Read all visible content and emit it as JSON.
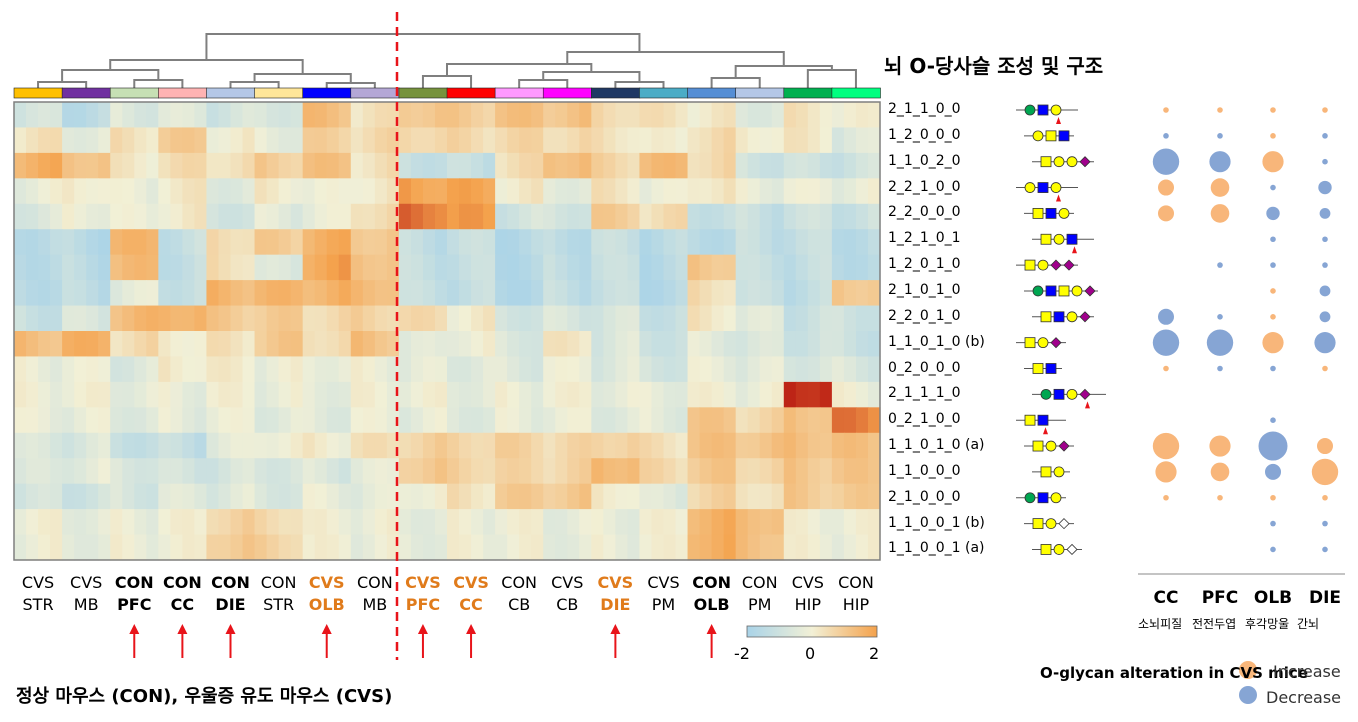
{
  "title": "뇌 O-당사슬 조성 및 구조",
  "footer": "정상 마우스 (CON), 우울증 유도 마우스 (CVS)",
  "colors": {
    "low": "#a9d3e8",
    "mid": "#f2f0d6",
    "high": "#f4a24c",
    "vhigh": "#b30c0c",
    "increase": "#f8b67a",
    "decrease": "#86a5d4",
    "cvs_orange": "#e07b1b",
    "arrow": "#e8141a",
    "divider": "#e8141a"
  },
  "groups": [
    {
      "cond": "CVS",
      "region": "STR",
      "style": "normal",
      "arrow": false,
      "color": "#ffc000"
    },
    {
      "cond": "CVS",
      "region": "MB",
      "style": "normal",
      "arrow": false,
      "color": "#7030a0"
    },
    {
      "cond": "CON",
      "region": "PFC",
      "style": "bold",
      "arrow": true,
      "color": "#c6e0b4"
    },
    {
      "cond": "CON",
      "region": "CC",
      "style": "bold",
      "arrow": true,
      "color": "#ffb3b3"
    },
    {
      "cond": "CON",
      "region": "DIE",
      "style": "bold",
      "arrow": true,
      "color": "#b4c7e7"
    },
    {
      "cond": "CON",
      "region": "STR",
      "style": "normal",
      "arrow": false,
      "color": "#ffe699"
    },
    {
      "cond": "CVS",
      "region": "OLB",
      "style": "orange",
      "arrow": true,
      "color": "#0000ff"
    },
    {
      "cond": "CON",
      "region": "MB",
      "style": "normal",
      "arrow": false,
      "color": "#b4a7d6"
    },
    {
      "cond": "CVS",
      "region": "PFC",
      "style": "orange",
      "arrow": true,
      "color": "#76923c"
    },
    {
      "cond": "CVS",
      "region": "CC",
      "style": "orange",
      "arrow": true,
      "color": "#ff0000"
    },
    {
      "cond": "CON",
      "region": "CB",
      "style": "normal",
      "arrow": false,
      "color": "#ff99ff"
    },
    {
      "cond": "CVS",
      "region": "CB",
      "style": "normal",
      "arrow": false,
      "color": "#ff00ff"
    },
    {
      "cond": "CVS",
      "region": "DIE",
      "style": "orange",
      "arrow": true,
      "color": "#1f3864"
    },
    {
      "cond": "CVS",
      "region": "PM",
      "style": "normal",
      "arrow": false,
      "color": "#4bacc6"
    },
    {
      "cond": "CON",
      "region": "OLB",
      "style": "bold",
      "arrow": true,
      "color": "#558ed5"
    },
    {
      "cond": "CON",
      "region": "PM",
      "style": "normal",
      "arrow": false,
      "color": "#b4c7e7"
    },
    {
      "cond": "CVS",
      "region": "HIP",
      "style": "normal",
      "arrow": false,
      "color": "#00b050"
    },
    {
      "cond": "CON",
      "region": "HIP",
      "style": "normal",
      "arrow": false,
      "color": "#00ff80"
    }
  ],
  "glycans": [
    "2_1_1_0_0",
    "1_2_0_0_0",
    "1_1_0_2_0",
    "2_2_1_0_0",
    "2_2_0_0_0",
    "1_2_1_0_1",
    "1_2_0_1_0",
    "2_1_0_1_0",
    "2_2_0_1_0",
    "1_1_0_1_0 (b)",
    "0_2_0_0_0",
    "2_1_1_1_0",
    "0_2_1_0_0",
    "1_1_0_1_0 (a)",
    "1_1_0_0_0",
    "2_1_0_0_0",
    "1_1_0_0_1 (b)",
    "1_1_0_0_1 (a)"
  ],
  "chart_data": [
    {
      "type": "heatmap",
      "title": "",
      "rows": [
        "2_1_1_0_0",
        "1_2_0_0_0",
        "1_1_0_2_0",
        "2_2_1_0_0",
        "2_2_0_0_0",
        "1_2_1_0_1",
        "1_2_0_1_0",
        "2_1_0_1_0",
        "2_2_0_1_0",
        "1_1_0_1_0 (b)",
        "0_2_0_0_0",
        "2_1_1_1_0",
        "0_2_1_0_0",
        "1_1_0_1_0 (a)",
        "1_1_0_0_0",
        "2_1_0_0_0",
        "1_1_0_0_1 (b)",
        "1_1_0_0_1 (a)"
      ],
      "columns": [
        "CVS STR",
        "CVS MB",
        "CON PFC",
        "CON CC",
        "CON DIE",
        "CON STR",
        "CVS OLB",
        "CON MB",
        "CVS PFC",
        "CVS CC",
        "CON CB",
        "CVS CB",
        "CVS DIE",
        "CVS PM",
        "CON OLB",
        "CON PM",
        "CVS HIP",
        "CON HIP"
      ],
      "values": [
        [
          -0.6,
          -0.8,
          -0.3,
          -0.4,
          -0.5,
          -0.3,
          0.9,
          0.2,
          0.9,
          0.7,
          0.8,
          0.9,
          0.5,
          0.2,
          0.1,
          -0.2,
          0.2,
          -0.1
        ],
        [
          0.2,
          -0.1,
          0.3,
          0.6,
          0.1,
          -0.1,
          0.5,
          0.4,
          0.6,
          0.4,
          0.4,
          0.5,
          0.3,
          -0.1,
          0.4,
          0.2,
          0.1,
          -0.4
        ],
        [
          1.2,
          1.0,
          0.1,
          0.3,
          0.4,
          0.7,
          0.8,
          0.3,
          -0.6,
          -0.8,
          0.3,
          1.1,
          0.5,
          0.9,
          0.5,
          -0.5,
          -0.7,
          -0.6
        ],
        [
          -0.1,
          0.2,
          -0.2,
          0.1,
          -0.2,
          0.1,
          -0.2,
          0.2,
          1.5,
          1.3,
          0.1,
          -0.1,
          0.2,
          -0.2,
          0.3,
          -0.1,
          -0.2,
          -0.1
        ],
        [
          -0.3,
          0.0,
          -0.2,
          0.1,
          -0.4,
          -0.3,
          -0.2,
          0.5,
          1.9,
          1.4,
          -0.5,
          -0.4,
          0.6,
          0.3,
          -0.6,
          -0.7,
          -0.7,
          -0.6
        ],
        [
          -0.8,
          -0.9,
          1.0,
          -0.7,
          0.5,
          0.6,
          1.2,
          0.9,
          -0.8,
          -0.8,
          -0.9,
          -0.8,
          -0.8,
          -0.9,
          -0.8,
          -0.8,
          -0.8,
          -0.8
        ],
        [
          -0.8,
          -0.9,
          0.9,
          -0.7,
          0.4,
          -0.5,
          1.4,
          1.0,
          -0.8,
          -0.8,
          -0.9,
          -0.8,
          -0.8,
          -0.9,
          0.9,
          -0.8,
          -0.8,
          -0.8
        ],
        [
          -0.8,
          -0.9,
          -0.3,
          -0.6,
          1.1,
          1.0,
          1.2,
          1.1,
          -0.8,
          -0.8,
          -0.9,
          -0.8,
          -0.8,
          -0.9,
          0.4,
          -0.8,
          -0.8,
          0.9
        ],
        [
          -0.6,
          -0.5,
          1.0,
          1.3,
          0.7,
          0.6,
          0.5,
          0.6,
          0.3,
          0.1,
          -0.4,
          -0.5,
          -0.5,
          -0.6,
          0.2,
          -0.4,
          -0.6,
          -0.5
        ],
        [
          1.0,
          1.1,
          0.4,
          0.2,
          0.2,
          0.7,
          0.5,
          0.9,
          -0.4,
          0.0,
          -0.3,
          0.1,
          -0.4,
          -0.5,
          -0.3,
          -0.5,
          -0.5,
          -0.6
        ],
        [
          -0.1,
          -0.2,
          -0.3,
          0.2,
          0.0,
          -0.1,
          0.0,
          -0.1,
          -0.3,
          -0.2,
          -0.3,
          -0.2,
          -0.3,
          -0.4,
          -0.2,
          -0.3,
          -0.3,
          -0.4
        ],
        [
          -0.1,
          -0.1,
          -0.1,
          -0.1,
          -0.1,
          -0.1,
          -0.1,
          -0.1,
          -0.1,
          -0.1,
          -0.1,
          -0.1,
          -0.1,
          -0.1,
          -0.1,
          -0.1,
          2.6,
          -0.1
        ],
        [
          -0.2,
          -0.2,
          -0.2,
          -0.2,
          -0.2,
          -0.2,
          -0.2,
          -0.2,
          -0.2,
          -0.2,
          -0.2,
          -0.2,
          -0.2,
          -0.2,
          0.7,
          0.5,
          1.0,
          1.7
        ],
        [
          -0.5,
          -0.4,
          -0.6,
          -0.8,
          -0.3,
          0.1,
          0.1,
          0.2,
          0.6,
          0.6,
          0.5,
          0.4,
          0.7,
          0.3,
          0.8,
          0.9,
          1.0,
          0.8
        ],
        [
          -0.5,
          -0.2,
          -0.3,
          -0.6,
          -0.5,
          -0.3,
          -0.4,
          -0.3,
          0.8,
          0.6,
          0.4,
          0.5,
          1.2,
          0.4,
          0.7,
          0.6,
          0.8,
          0.7
        ],
        [
          -0.6,
          -0.5,
          -0.4,
          -0.4,
          -0.3,
          -0.3,
          -0.2,
          -0.3,
          0.1,
          0.3,
          0.6,
          0.8,
          0.2,
          -0.4,
          0.5,
          0.4,
          0.7,
          0.6
        ],
        [
          -0.1,
          -0.1,
          -0.1,
          -0.1,
          0.6,
          0.5,
          -0.1,
          -0.1,
          -0.1,
          -0.1,
          -0.1,
          -0.1,
          -0.1,
          -0.1,
          1.2,
          1.1,
          -0.1,
          -0.1
        ],
        [
          -0.1,
          -0.1,
          -0.1,
          -0.1,
          0.8,
          0.6,
          -0.1,
          -0.1,
          -0.1,
          -0.1,
          -0.1,
          -0.1,
          -0.1,
          -0.1,
          1.3,
          1.0,
          -0.1,
          -0.1
        ]
      ],
      "colorbar": {
        "min": -2,
        "max": 2,
        "ticks": [
          "-2",
          "0",
          "2"
        ]
      },
      "notes": "Hierarchical clustering dendrogram above columns; red dashed line separates two clusters"
    },
    {
      "type": "scatter",
      "title": "O-glycan alteration in CVS mice",
      "columns": [
        "CC",
        "PFC",
        "OLB",
        "DIE"
      ],
      "column_labels_kr": [
        "소뇌피질",
        "전전두엽",
        "후각망울",
        "간뇌"
      ],
      "legend": [
        "Increase",
        "Decrease"
      ],
      "rows": [
        "2_1_1_0_0",
        "1_2_0_0_0",
        "1_1_0_2_0",
        "2_2_1_0_0",
        "2_2_0_0_0",
        "1_2_1_0_1",
        "1_2_0_1_0",
        "2_1_0_1_0",
        "2_2_0_1_0",
        "1_1_0_1_0 (b)",
        "0_2_0_0_0",
        "2_1_1_1_0",
        "0_2_1_0_0",
        "1_1_0_1_0 (a)",
        "1_1_0_0_0",
        "2_1_0_0_0",
        "1_1_0_0_1 (b)",
        "1_1_0_0_1 (a)"
      ],
      "points": [
        {
          "row": "2_1_1_0_0",
          "col": "CC",
          "dir": "Increase",
          "size": 1
        },
        {
          "row": "2_1_1_0_0",
          "col": "PFC",
          "dir": "Increase",
          "size": 1
        },
        {
          "row": "2_1_1_0_0",
          "col": "OLB",
          "dir": "Increase",
          "size": 1
        },
        {
          "row": "2_1_1_0_0",
          "col": "DIE",
          "dir": "Increase",
          "size": 1
        },
        {
          "row": "1_2_0_0_0",
          "col": "CC",
          "dir": "Decrease",
          "size": 1
        },
        {
          "row": "1_2_0_0_0",
          "col": "PFC",
          "dir": "Decrease",
          "size": 1
        },
        {
          "row": "1_2_0_0_0",
          "col": "OLB",
          "dir": "Increase",
          "size": 1
        },
        {
          "row": "1_2_0_0_0",
          "col": "DIE",
          "dir": "Decrease",
          "size": 1
        },
        {
          "row": "1_1_0_2_0",
          "col": "CC",
          "dir": "Decrease",
          "size": 5
        },
        {
          "row": "1_1_0_2_0",
          "col": "PFC",
          "dir": "Decrease",
          "size": 4
        },
        {
          "row": "1_1_0_2_0",
          "col": "OLB",
          "dir": "Increase",
          "size": 4
        },
        {
          "row": "1_1_0_2_0",
          "col": "DIE",
          "dir": "Decrease",
          "size": 1
        },
        {
          "row": "2_2_1_0_0",
          "col": "CC",
          "dir": "Increase",
          "size": 3
        },
        {
          "row": "2_2_1_0_0",
          "col": "PFC",
          "dir": "Increase",
          "size": 3.5
        },
        {
          "row": "2_2_1_0_0",
          "col": "OLB",
          "dir": "Decrease",
          "size": 1
        },
        {
          "row": "2_2_1_0_0",
          "col": "DIE",
          "dir": "Decrease",
          "size": 2.5
        },
        {
          "row": "2_2_0_0_0",
          "col": "CC",
          "dir": "Increase",
          "size": 3
        },
        {
          "row": "2_2_0_0_0",
          "col": "PFC",
          "dir": "Increase",
          "size": 3.5
        },
        {
          "row": "2_2_0_0_0",
          "col": "OLB",
          "dir": "Decrease",
          "size": 2.5
        },
        {
          "row": "2_2_0_0_0",
          "col": "DIE",
          "dir": "Decrease",
          "size": 2
        },
        {
          "row": "1_2_1_0_1",
          "col": "OLB",
          "dir": "Decrease",
          "size": 1
        },
        {
          "row": "1_2_1_0_1",
          "col": "DIE",
          "dir": "Decrease",
          "size": 1
        },
        {
          "row": "1_2_0_1_0",
          "col": "PFC",
          "dir": "Decrease",
          "size": 1
        },
        {
          "row": "1_2_0_1_0",
          "col": "OLB",
          "dir": "Decrease",
          "size": 1
        },
        {
          "row": "1_2_0_1_0",
          "col": "DIE",
          "dir": "Decrease",
          "size": 1
        },
        {
          "row": "2_1_0_1_0",
          "col": "OLB",
          "dir": "Increase",
          "size": 1
        },
        {
          "row": "2_1_0_1_0",
          "col": "DIE",
          "dir": "Decrease",
          "size": 2
        },
        {
          "row": "2_2_0_1_0",
          "col": "CC",
          "dir": "Decrease",
          "size": 3
        },
        {
          "row": "2_2_0_1_0",
          "col": "PFC",
          "dir": "Decrease",
          "size": 1
        },
        {
          "row": "2_2_0_1_0",
          "col": "OLB",
          "dir": "Increase",
          "size": 1
        },
        {
          "row": "2_2_0_1_0",
          "col": "DIE",
          "dir": "Decrease",
          "size": 2
        },
        {
          "row": "1_1_0_1_0 (b)",
          "col": "CC",
          "dir": "Decrease",
          "size": 5
        },
        {
          "row": "1_1_0_1_0 (b)",
          "col": "PFC",
          "dir": "Decrease",
          "size": 5
        },
        {
          "row": "1_1_0_1_0 (b)",
          "col": "OLB",
          "dir": "Increase",
          "size": 4
        },
        {
          "row": "1_1_0_1_0 (b)",
          "col": "DIE",
          "dir": "Decrease",
          "size": 4
        },
        {
          "row": "0_2_0_0_0",
          "col": "CC",
          "dir": "Increase",
          "size": 1
        },
        {
          "row": "0_2_0_0_0",
          "col": "PFC",
          "dir": "Decrease",
          "size": 1
        },
        {
          "row": "0_2_0_0_0",
          "col": "OLB",
          "dir": "Decrease",
          "size": 1
        },
        {
          "row": "0_2_0_0_0",
          "col": "DIE",
          "dir": "Increase",
          "size": 1
        },
        {
          "row": "0_2_1_0_0",
          "col": "OLB",
          "dir": "Decrease",
          "size": 1
        },
        {
          "row": "1_1_0_1_0 (a)",
          "col": "CC",
          "dir": "Increase",
          "size": 5
        },
        {
          "row": "1_1_0_1_0 (a)",
          "col": "PFC",
          "dir": "Increase",
          "size": 4
        },
        {
          "row": "1_1_0_1_0 (a)",
          "col": "OLB",
          "dir": "Decrease",
          "size": 5.5
        },
        {
          "row": "1_1_0_1_0 (a)",
          "col": "DIE",
          "dir": "Increase",
          "size": 3
        },
        {
          "row": "1_1_0_0_0",
          "col": "CC",
          "dir": "Increase",
          "size": 4
        },
        {
          "row": "1_1_0_0_0",
          "col": "PFC",
          "dir": "Increase",
          "size": 3.5
        },
        {
          "row": "1_1_0_0_0",
          "col": "OLB",
          "dir": "Decrease",
          "size": 3
        },
        {
          "row": "1_1_0_0_0",
          "col": "DIE",
          "dir": "Increase",
          "size": 5
        },
        {
          "row": "2_1_0_0_0",
          "col": "CC",
          "dir": "Increase",
          "size": 1
        },
        {
          "row": "2_1_0_0_0",
          "col": "PFC",
          "dir": "Increase",
          "size": 1
        },
        {
          "row": "2_1_0_0_0",
          "col": "OLB",
          "dir": "Increase",
          "size": 1
        },
        {
          "row": "2_1_0_0_0",
          "col": "DIE",
          "dir": "Increase",
          "size": 1
        },
        {
          "row": "1_1_0_0_1 (b)",
          "col": "OLB",
          "dir": "Decrease",
          "size": 1
        },
        {
          "row": "1_1_0_0_1 (b)",
          "col": "DIE",
          "dir": "Decrease",
          "size": 1
        },
        {
          "row": "1_1_0_0_1 (a)",
          "col": "OLB",
          "dir": "Decrease",
          "size": 1
        },
        {
          "row": "1_1_0_0_1 (a)",
          "col": "DIE",
          "dir": "Decrease",
          "size": 1
        }
      ]
    }
  ]
}
